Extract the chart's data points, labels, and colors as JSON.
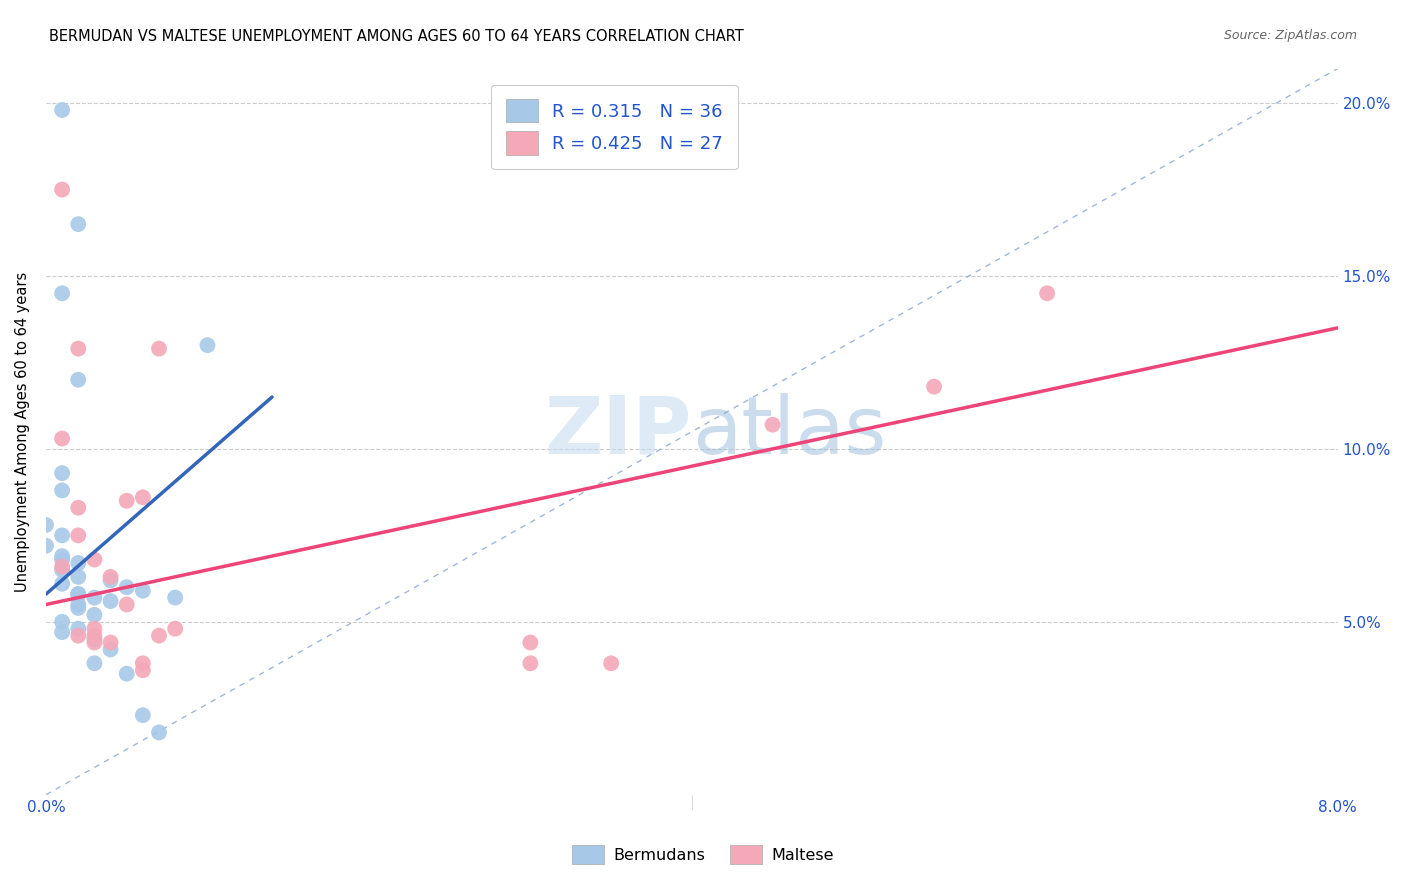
{
  "title": "BERMUDAN VS MALTESE UNEMPLOYMENT AMONG AGES 60 TO 64 YEARS CORRELATION CHART",
  "source": "Source: ZipAtlas.com",
  "ylabel": "Unemployment Among Ages 60 to 64 years",
  "xlim": [
    0,
    0.08
  ],
  "ylim": [
    0,
    0.21
  ],
  "xticks": [
    0.0,
    0.01,
    0.02,
    0.03,
    0.04,
    0.05,
    0.06,
    0.07,
    0.08
  ],
  "yticks": [
    0.0,
    0.05,
    0.1,
    0.15,
    0.2
  ],
  "bermudan_color": "#a8c8e8",
  "maltese_color": "#f4a8b8",
  "bermudan_R": 0.315,
  "bermudan_N": 36,
  "maltese_R": 0.425,
  "maltese_N": 27,
  "trend_color_b": "#3366bb",
  "trend_color_m": "#ee4477",
  "diagonal_color": "#7799cc",
  "legend_text_color": "#2255cc",
  "watermark_color": "#c8ddf0",
  "bermudan_x": [
    0.001,
    0.002,
    0.001,
    0.002,
    0.001,
    0.001,
    0.0,
    0.001,
    0.0,
    0.001,
    0.001,
    0.002,
    0.001,
    0.002,
    0.001,
    0.002,
    0.003,
    0.002,
    0.002,
    0.003,
    0.001,
    0.002,
    0.001,
    0.003,
    0.004,
    0.003,
    0.002,
    0.004,
    0.005,
    0.006,
    0.004,
    0.005,
    0.006,
    0.008,
    0.007,
    0.01
  ],
  "bermudan_y": [
    0.198,
    0.165,
    0.145,
    0.12,
    0.093,
    0.088,
    0.078,
    0.075,
    0.072,
    0.069,
    0.068,
    0.067,
    0.065,
    0.063,
    0.061,
    0.058,
    0.057,
    0.055,
    0.054,
    0.052,
    0.05,
    0.048,
    0.047,
    0.045,
    0.042,
    0.038,
    0.058,
    0.056,
    0.035,
    0.023,
    0.062,
    0.06,
    0.059,
    0.057,
    0.018,
    0.13
  ],
  "maltese_x": [
    0.001,
    0.002,
    0.001,
    0.002,
    0.003,
    0.004,
    0.001,
    0.002,
    0.003,
    0.003,
    0.002,
    0.003,
    0.004,
    0.005,
    0.005,
    0.006,
    0.006,
    0.006,
    0.007,
    0.007,
    0.008,
    0.03,
    0.03,
    0.035,
    0.045,
    0.055,
    0.062
  ],
  "maltese_y": [
    0.175,
    0.129,
    0.103,
    0.083,
    0.068,
    0.063,
    0.066,
    0.075,
    0.048,
    0.046,
    0.046,
    0.044,
    0.044,
    0.055,
    0.085,
    0.036,
    0.038,
    0.086,
    0.129,
    0.046,
    0.048,
    0.044,
    0.038,
    0.038,
    0.107,
    0.118,
    0.145
  ],
  "trend_b_x0": 0.0,
  "trend_b_y0": 0.058,
  "trend_b_x1": 0.014,
  "trend_b_y1": 0.115,
  "trend_m_x0": 0.0,
  "trend_m_y0": 0.055,
  "trend_m_x1": 0.08,
  "trend_m_y1": 0.135
}
